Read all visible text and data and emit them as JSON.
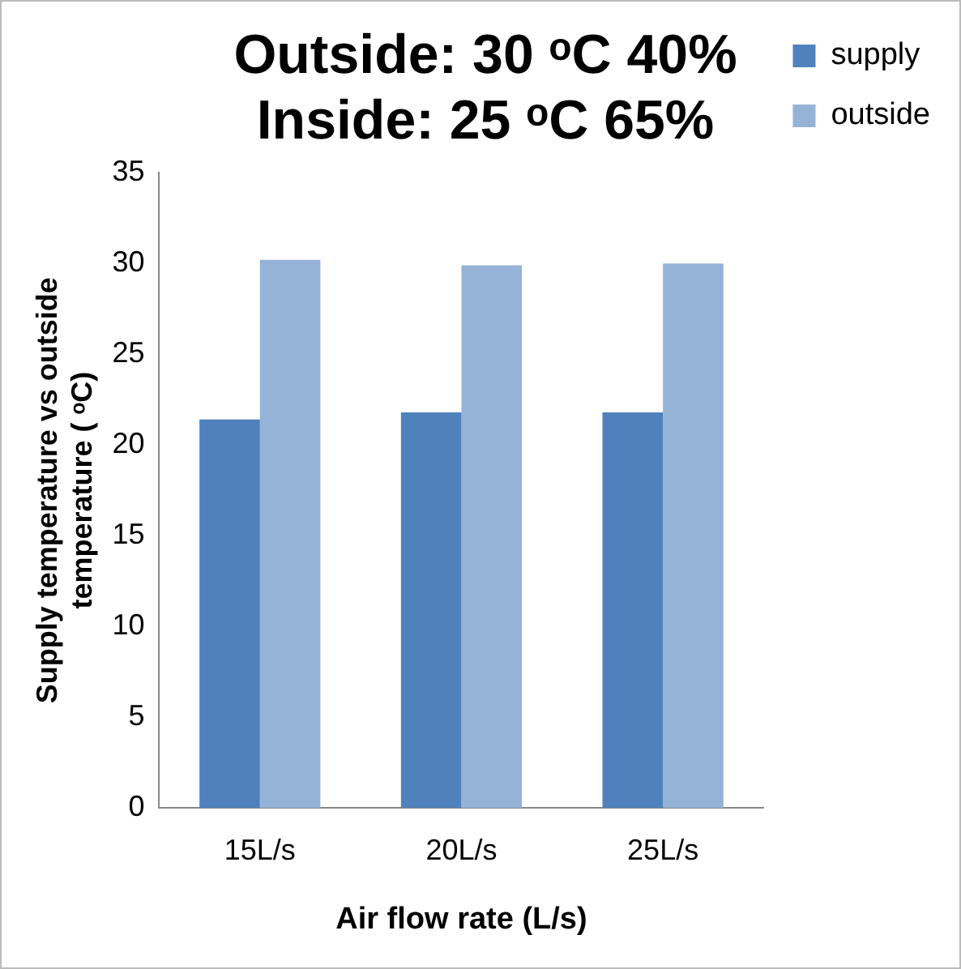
{
  "chart_data": {
    "type": "bar",
    "title": "Outside: 30 ᵒC 40%\nInside: 25 ᵒC 65%",
    "xlabel": "Air flow rate (L/s)",
    "ylabel": "Supply temperature vs outside\ntemperature ( ᵒC)",
    "categories": [
      "15L/s",
      "20L/s",
      "25L/s"
    ],
    "series": [
      {
        "name": "supply",
        "color": "#4f81bd",
        "values": [
          21.4,
          21.8,
          21.8
        ]
      },
      {
        "name": "outside",
        "color": "#95b3d7",
        "values": [
          30.2,
          29.9,
          30.0
        ]
      }
    ],
    "ylim": [
      0,
      35
    ],
    "yticks": [
      0,
      5,
      10,
      15,
      20,
      25,
      30,
      35
    ],
    "grid": false,
    "legend": "top right"
  }
}
